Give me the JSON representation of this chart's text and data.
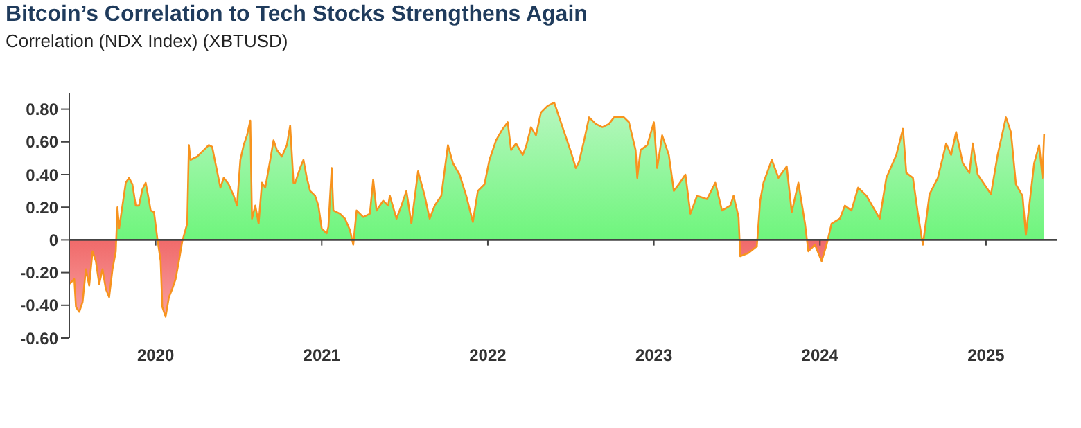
{
  "chart_data": {
    "type": "area",
    "title": "Bitcoin’s Correlation to Tech Stocks Strengthens Again",
    "subtitle": "Correlation (NDX Index) (XBTUSD)",
    "x": [
      2019.48,
      2019.51,
      2019.52,
      2019.54,
      2019.56,
      2019.58,
      2019.6,
      2019.62,
      2019.64,
      2019.66,
      2019.68,
      2019.7,
      2019.72,
      2019.74,
      2019.76,
      2019.77,
      2019.78,
      2019.8,
      2019.82,
      2019.84,
      2019.86,
      2019.88,
      2019.9,
      2019.92,
      2019.94,
      2019.96,
      2019.97,
      2019.99,
      2020.01,
      2020.03,
      2020.04,
      2020.06,
      2020.08,
      2020.1,
      2020.12,
      2020.14,
      2020.16,
      2020.19,
      2020.2,
      2020.21,
      2020.25,
      2020.29,
      2020.32,
      2020.34,
      2020.36,
      2020.39,
      2020.41,
      2020.44,
      2020.47,
      2020.49,
      2020.51,
      2020.53,
      2020.55,
      2020.57,
      2020.58,
      2020.6,
      2020.62,
      2020.64,
      2020.66,
      2020.69,
      2020.71,
      2020.73,
      2020.76,
      2020.79,
      2020.81,
      2020.83,
      2020.84,
      2020.87,
      2020.89,
      2020.91,
      2020.93,
      2020.96,
      2020.98,
      2021.0,
      2021.03,
      2021.04,
      2021.06,
      2021.07,
      2021.11,
      2021.14,
      2021.17,
      2021.19,
      2021.21,
      2021.25,
      2021.29,
      2021.31,
      2021.33,
      2021.37,
      2021.4,
      2021.41,
      2021.45,
      2021.48,
      2021.51,
      2021.54,
      2021.58,
      2021.62,
      2021.65,
      2021.68,
      2021.72,
      2021.76,
      2021.79,
      2021.83,
      2021.87,
      2021.91,
      2021.94,
      2021.98,
      2022.01,
      2022.05,
      2022.09,
      2022.12,
      2022.14,
      2022.17,
      2022.21,
      2022.23,
      2022.26,
      2022.29,
      2022.32,
      2022.36,
      2022.4,
      2022.43,
      2022.46,
      2022.5,
      2022.53,
      2022.55,
      2022.58,
      2022.61,
      2022.65,
      2022.69,
      2022.73,
      2022.76,
      2022.82,
      2022.85,
      2022.89,
      2022.9,
      2022.92,
      2022.96,
      2023.0,
      2023.02,
      2023.05,
      2023.09,
      2023.12,
      2023.15,
      2023.19,
      2023.22,
      2023.26,
      2023.32,
      2023.37,
      2023.41,
      2023.46,
      2023.48,
      2023.51,
      2023.52,
      2023.57,
      2023.62,
      2023.64,
      2023.66,
      2023.71,
      2023.75,
      2023.8,
      2023.83,
      2023.87,
      2023.91,
      2023.93,
      2023.97,
      2024.01,
      2024.04,
      2024.07,
      2024.12,
      2024.15,
      2024.19,
      2024.23,
      2024.28,
      2024.32,
      2024.36,
      2024.4,
      2024.46,
      2024.5,
      2024.52,
      2024.56,
      2024.59,
      2024.62,
      2024.66,
      2024.71,
      2024.76,
      2024.79,
      2024.82,
      2024.86,
      2024.9,
      2024.92,
      2024.95,
      2024.99,
      2025.03,
      2025.07,
      2025.12,
      2025.15,
      2025.18,
      2025.22,
      2025.24,
      2025.29,
      2025.32,
      2025.34,
      2025.35
    ],
    "series": [
      {
        "color": "#f7931e",
        "values": [
          -0.27,
          -0.24,
          -0.41,
          -0.44,
          -0.38,
          -0.18,
          -0.28,
          -0.07,
          -0.13,
          -0.27,
          -0.18,
          -0.3,
          -0.35,
          -0.18,
          -0.07,
          0.2,
          0.07,
          0.21,
          0.35,
          0.38,
          0.34,
          0.21,
          0.21,
          0.31,
          0.35,
          0.24,
          0.18,
          0.17,
          0.01,
          -0.13,
          -0.41,
          -0.47,
          -0.35,
          -0.3,
          -0.24,
          -0.13,
          -0.01,
          0.1,
          0.58,
          0.49,
          0.51,
          0.55,
          0.58,
          0.57,
          0.47,
          0.32,
          0.38,
          0.34,
          0.27,
          0.21,
          0.49,
          0.58,
          0.64,
          0.73,
          0.13,
          0.21,
          0.1,
          0.35,
          0.32,
          0.49,
          0.61,
          0.55,
          0.51,
          0.58,
          0.7,
          0.35,
          0.35,
          0.44,
          0.49,
          0.38,
          0.3,
          0.27,
          0.21,
          0.07,
          0.04,
          0.08,
          0.44,
          0.18,
          0.16,
          0.13,
          0.06,
          -0.03,
          0.18,
          0.14,
          0.16,
          0.37,
          0.18,
          0.24,
          0.21,
          0.27,
          0.13,
          0.21,
          0.3,
          0.1,
          0.42,
          0.27,
          0.13,
          0.21,
          0.27,
          0.58,
          0.47,
          0.4,
          0.27,
          0.11,
          0.3,
          0.34,
          0.49,
          0.61,
          0.68,
          0.72,
          0.55,
          0.59,
          0.52,
          0.57,
          0.69,
          0.64,
          0.78,
          0.82,
          0.84,
          0.75,
          0.66,
          0.54,
          0.44,
          0.48,
          0.61,
          0.75,
          0.71,
          0.69,
          0.71,
          0.75,
          0.75,
          0.72,
          0.55,
          0.38,
          0.55,
          0.58,
          0.72,
          0.44,
          0.64,
          0.52,
          0.3,
          0.34,
          0.4,
          0.16,
          0.27,
          0.25,
          0.35,
          0.18,
          0.21,
          0.27,
          0.14,
          -0.1,
          -0.08,
          -0.04,
          0.24,
          0.35,
          0.49,
          0.38,
          0.45,
          0.17,
          0.35,
          0.1,
          -0.07,
          -0.03,
          -0.13,
          -0.03,
          0.1,
          0.13,
          0.21,
          0.18,
          0.32,
          0.27,
          0.2,
          0.13,
          0.38,
          0.52,
          0.68,
          0.41,
          0.38,
          0.16,
          -0.03,
          0.28,
          0.38,
          0.59,
          0.52,
          0.66,
          0.47,
          0.41,
          0.59,
          0.4,
          0.34,
          0.28,
          0.52,
          0.75,
          0.66,
          0.34,
          0.27,
          0.03,
          0.47,
          0.58,
          0.38,
          0.65
        ]
      }
    ],
    "xlim": [
      2019.48,
      2025.43
    ],
    "xticks": [
      2020,
      2021,
      2022,
      2023,
      2024,
      2025
    ],
    "ylim": [
      -0.6,
      0.9
    ],
    "yticks": [
      {
        "value": -0.6,
        "label": "-0.60"
      },
      {
        "value": -0.4,
        "label": "-0.40"
      },
      {
        "value": -0.2,
        "label": "-0.20"
      },
      0,
      {
        "value": 0.2,
        "label": "0.20"
      },
      {
        "value": 0.4,
        "label": "0.40"
      },
      {
        "value": 0.6,
        "label": "0.60"
      },
      {
        "value": 0.8,
        "label": "0.80"
      }
    ],
    "legend": false,
    "marker": "none",
    "line_style": "solid"
  }
}
